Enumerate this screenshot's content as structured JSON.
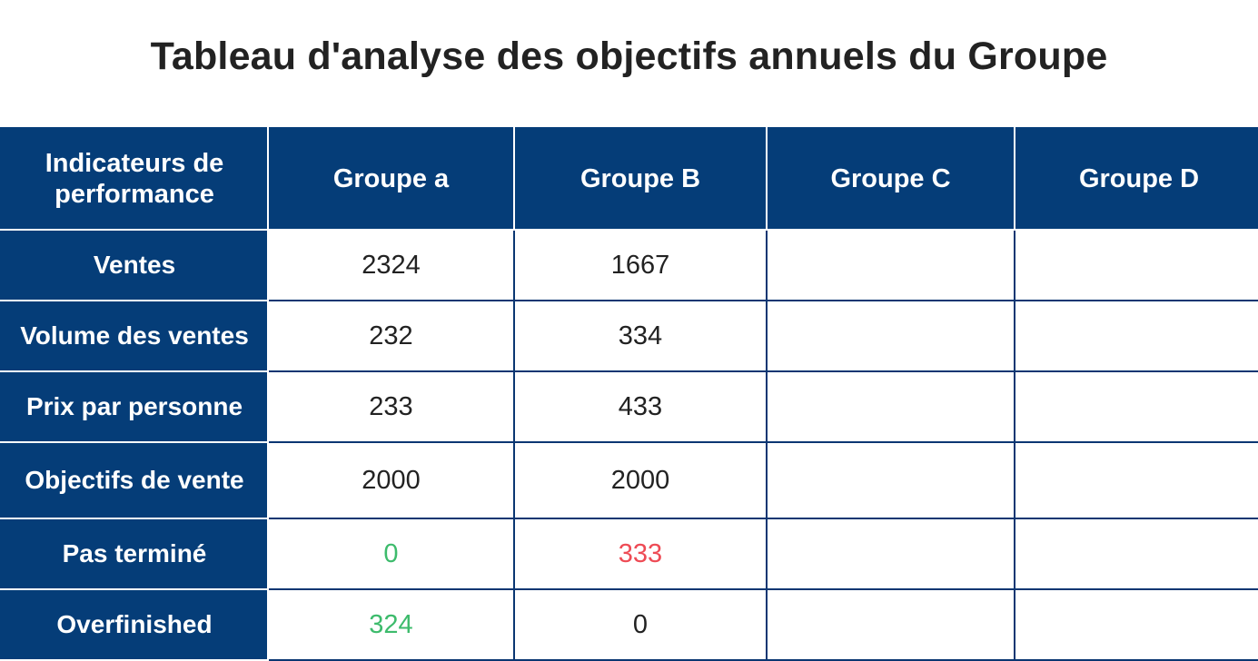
{
  "title": "Tableau d'analyse des objectifs annuels du Groupe",
  "colors": {
    "header_bg": "#053d78",
    "border": "#0a3672",
    "positive": "#3dbb6c",
    "negative": "#ee4b55",
    "text": "#222222"
  },
  "table": {
    "header": {
      "indicator_line1": "Indicateurs de",
      "indicator_line2": "performance",
      "groups": [
        "Groupe a",
        "Groupe B",
        "Groupe C",
        "Groupe D"
      ]
    },
    "rows": [
      {
        "label": "Ventes",
        "values": [
          "2324",
          "1667",
          "",
          ""
        ]
      },
      {
        "label": "Volume des ventes",
        "values": [
          "232",
          "334",
          "",
          ""
        ]
      },
      {
        "label": "Prix par personne",
        "values": [
          "233",
          "433",
          "",
          ""
        ]
      },
      {
        "label": "Objectifs de vente",
        "values": [
          "2000",
          "2000",
          "",
          ""
        ]
      },
      {
        "label": "Pas terminé",
        "values": [
          "0",
          "333",
          "",
          ""
        ]
      },
      {
        "label": "Overfinished",
        "values": [
          "324",
          "0",
          "",
          ""
        ]
      }
    ]
  }
}
